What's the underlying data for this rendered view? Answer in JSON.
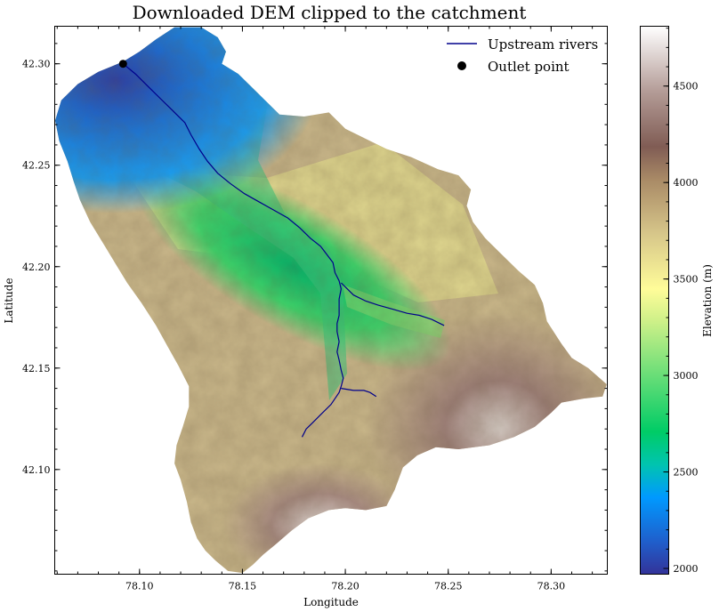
{
  "chart_data": {
    "type": "heatmap",
    "title": "Downloaded DEM clipped to the catchment",
    "xlabel": "Longitude",
    "ylabel": "Latitude",
    "xlim": [
      78.0588,
      78.3273
    ],
    "ylim": [
      42.0484,
      42.3185
    ],
    "xticks": [
      78.1,
      78.15,
      78.2,
      78.25,
      78.3
    ],
    "xtick_labels": [
      "78.10",
      "78.15",
      "78.20",
      "78.25",
      "78.30"
    ],
    "yticks": [
      42.1,
      42.15,
      42.2,
      42.25,
      42.3
    ],
    "ytick_labels": [
      "42.10",
      "42.15",
      "42.20",
      "42.25",
      "42.30"
    ],
    "colorbar": {
      "label": "Elevation (m)",
      "colormap": "terrain",
      "range": [
        1970,
        4810
      ],
      "ticks": [
        2000,
        2500,
        3000,
        3500,
        4000,
        4500
      ],
      "tick_labels": [
        "2000",
        "2500",
        "3000",
        "3500",
        "4000",
        "4500"
      ]
    },
    "legend": {
      "placement": "top-right",
      "entries": [
        {
          "label": "Upstream rivers",
          "kind": "line",
          "color": "#00008b"
        },
        {
          "label": "Outlet point",
          "kind": "marker",
          "color": "#000000"
        }
      ]
    },
    "outlet_point": {
      "lon": 78.092,
      "lat": 42.3
    },
    "catchment_boundary": [
      [
        78.092,
        42.301
      ],
      [
        78.1,
        42.306
      ],
      [
        78.108,
        42.312
      ],
      [
        78.117,
        42.318
      ],
      [
        78.13,
        42.318
      ],
      [
        78.138,
        42.313
      ],
      [
        78.142,
        42.306
      ],
      [
        78.14,
        42.3
      ],
      [
        78.148,
        42.295
      ],
      [
        78.158,
        42.285
      ],
      [
        78.168,
        42.275
      ],
      [
        78.18,
        42.274
      ],
      [
        78.192,
        42.276
      ],
      [
        78.2,
        42.268
      ],
      [
        78.21,
        42.263
      ],
      [
        78.22,
        42.258
      ],
      [
        78.232,
        42.254
      ],
      [
        78.245,
        42.248
      ],
      [
        78.255,
        42.245
      ],
      [
        78.261,
        42.238
      ],
      [
        78.259,
        42.23
      ],
      [
        78.262,
        42.222
      ],
      [
        78.268,
        42.214
      ],
      [
        78.276,
        42.206
      ],
      [
        78.284,
        42.198
      ],
      [
        78.292,
        42.191
      ],
      [
        78.296,
        42.182
      ],
      [
        78.298,
        42.173
      ],
      [
        78.305,
        42.162
      ],
      [
        78.31,
        42.155
      ],
      [
        78.318,
        42.15
      ],
      [
        78.327,
        42.142
      ],
      [
        78.325,
        42.136
      ],
      [
        78.316,
        42.135
      ],
      [
        78.305,
        42.133
      ],
      [
        78.3,
        42.128
      ],
      [
        78.292,
        42.121
      ],
      [
        78.282,
        42.116
      ],
      [
        78.27,
        42.112
      ],
      [
        78.255,
        42.11
      ],
      [
        78.244,
        42.111
      ],
      [
        78.235,
        42.107
      ],
      [
        78.228,
        42.101
      ],
      [
        78.224,
        42.09
      ],
      [
        78.22,
        42.082
      ],
      [
        78.21,
        42.08
      ],
      [
        78.2,
        42.081
      ],
      [
        78.192,
        42.08
      ],
      [
        78.182,
        42.076
      ],
      [
        78.174,
        42.07
      ],
      [
        78.166,
        42.063
      ],
      [
        78.16,
        42.058
      ],
      [
        78.155,
        42.053
      ],
      [
        78.15,
        42.049
      ],
      [
        78.143,
        42.05
      ],
      [
        78.137,
        42.055
      ],
      [
        78.132,
        42.06
      ],
      [
        78.128,
        42.066
      ],
      [
        78.125,
        42.074
      ],
      [
        78.123,
        42.084
      ],
      [
        78.12,
        42.095
      ],
      [
        78.117,
        42.103
      ],
      [
        78.118,
        42.112
      ],
      [
        78.121,
        42.121
      ],
      [
        78.124,
        42.131
      ],
      [
        78.124,
        42.141
      ],
      [
        78.119,
        42.151
      ],
      [
        78.114,
        42.16
      ],
      [
        78.108,
        42.171
      ],
      [
        78.101,
        42.182
      ],
      [
        78.094,
        42.192
      ],
      [
        78.088,
        42.202
      ],
      [
        78.082,
        42.212
      ],
      [
        78.076,
        42.222
      ],
      [
        78.071,
        42.233
      ],
      [
        78.068,
        42.242
      ],
      [
        78.065,
        42.252
      ],
      [
        78.061,
        42.262
      ],
      [
        78.059,
        42.272
      ],
      [
        78.062,
        42.282
      ],
      [
        78.07,
        42.29
      ],
      [
        78.08,
        42.296
      ]
    ],
    "rivers": [
      [
        [
          78.092,
          42.3
        ],
        [
          78.098,
          42.295
        ],
        [
          78.104,
          42.289
        ],
        [
          78.11,
          42.283
        ],
        [
          78.116,
          42.277
        ],
        [
          78.122,
          42.271
        ],
        [
          78.125,
          42.265
        ],
        [
          78.129,
          42.258
        ],
        [
          78.133,
          42.252
        ],
        [
          78.138,
          42.246
        ],
        [
          78.144,
          42.241
        ],
        [
          78.151,
          42.236
        ],
        [
          78.158,
          42.232
        ],
        [
          78.165,
          42.228
        ],
        [
          78.172,
          42.224
        ],
        [
          78.178,
          42.219
        ],
        [
          78.183,
          42.214
        ],
        [
          78.188,
          42.21
        ],
        [
          78.191,
          42.206
        ],
        [
          78.194,
          42.202
        ],
        [
          78.195,
          42.197
        ],
        [
          78.197,
          42.193
        ],
        [
          78.198,
          42.189
        ],
        [
          78.197,
          42.184
        ],
        [
          78.197,
          42.18
        ],
        [
          78.197,
          42.176
        ],
        [
          78.196,
          42.172
        ],
        [
          78.196,
          42.168
        ],
        [
          78.197,
          42.163
        ],
        [
          78.196,
          42.158
        ],
        [
          78.197,
          42.154
        ],
        [
          78.198,
          42.149
        ],
        [
          78.199,
          42.145
        ],
        [
          78.198,
          42.141
        ],
        [
          78.197,
          42.138
        ],
        [
          78.193,
          42.132
        ],
        [
          78.188,
          42.127
        ],
        [
          78.184,
          42.123
        ],
        [
          78.181,
          42.12
        ],
        [
          78.179,
          42.116
        ]
      ],
      [
        [
          78.198,
          42.192
        ],
        [
          78.204,
          42.186
        ],
        [
          78.21,
          42.183
        ],
        [
          78.216,
          42.181
        ],
        [
          78.223,
          42.179
        ],
        [
          78.23,
          42.177
        ],
        [
          78.236,
          42.176
        ],
        [
          78.242,
          42.174
        ],
        [
          78.248,
          42.171
        ]
      ],
      [
        [
          78.198,
          42.14
        ],
        [
          78.204,
          42.139
        ],
        [
          78.209,
          42.139
        ],
        [
          78.212,
          42.138
        ],
        [
          78.215,
          42.136
        ]
      ]
    ]
  }
}
